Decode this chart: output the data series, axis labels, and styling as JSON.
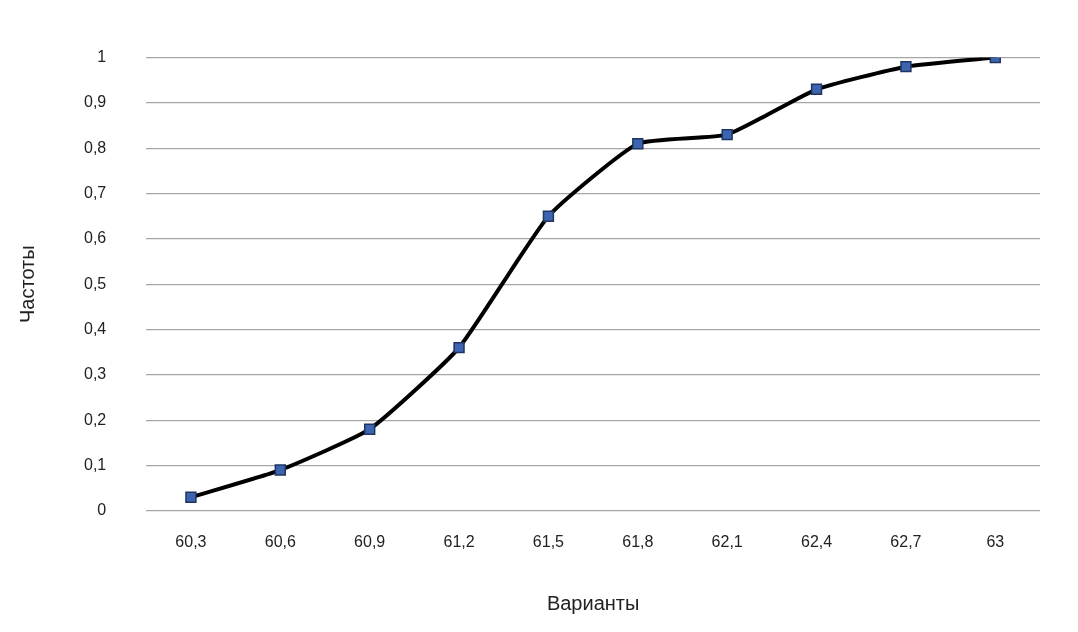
{
  "chart_data": {
    "type": "line",
    "xlabel": "Варианты",
    "ylabel": "Частоты",
    "categories": [
      "60,3",
      "60,6",
      "60,9",
      "61,2",
      "61,5",
      "61,8",
      "62,1",
      "62,4",
      "62,7",
      "63"
    ],
    "series": [
      {
        "color": "#000000",
        "colors": [
          "#3d64b0",
          "#3d64b0",
          "#3d64b0",
          "#3d64b0",
          "#3d64b0",
          "#3d64b0",
          "#3d64b0",
          "#3d64b0",
          "#3d64b0",
          "#3d64b0"
        ],
        "values": [
          0.03,
          0.09,
          0.18,
          0.36,
          0.65,
          0.81,
          0.83,
          0.93,
          0.98,
          1.0
        ]
      }
    ],
    "ylim": [
      0,
      1
    ],
    "yticks": [
      0,
      {
        "value": 0.1,
        "label": "0,1"
      },
      {
        "value": 0.2,
        "label": "0,2"
      },
      {
        "value": 0.3,
        "label": "0,3"
      },
      {
        "value": 0.4,
        "label": "0,4"
      },
      {
        "value": 0.5,
        "label": "0,5"
      },
      {
        "value": 0.6,
        "label": "0,6"
      },
      {
        "value": 0.7,
        "label": "0,7"
      },
      {
        "value": 0.8,
        "label": "0,8"
      },
      {
        "value": 0.9,
        "label": "0,9"
      },
      1
    ],
    "grid": "y",
    "legend": false,
    "marker": "square",
    "line_style": "solid"
  }
}
